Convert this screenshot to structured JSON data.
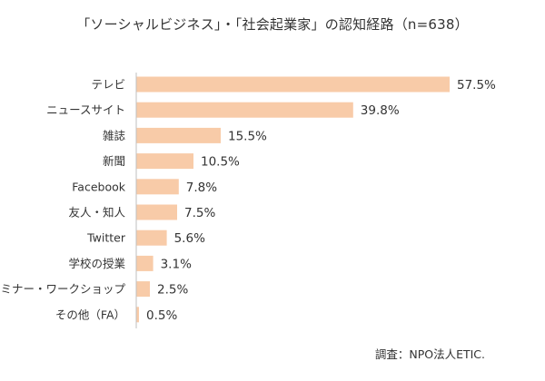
{
  "chart_data": {
    "type": "bar",
    "orientation": "horizontal",
    "title": "「ソーシャルビジネス」・「社会起業家」の認知経路（n=638）",
    "categories": [
      "テレビ",
      "ニュースサイト",
      "雑誌",
      "新聞",
      "Facebook",
      "友人・知人",
      "Twitter",
      "学校の授業",
      "セミナー・ワークショップ",
      "その他（FA）"
    ],
    "values": [
      57.5,
      39.8,
      15.5,
      10.5,
      7.8,
      7.5,
      5.6,
      3.1,
      2.5,
      0.5
    ],
    "value_labels": [
      "57.5%",
      "39.8%",
      "15.5%",
      "10.5%",
      "7.8%",
      "7.5%",
      "5.6%",
      "3.1%",
      "2.5%",
      "0.5%"
    ],
    "unit": "%",
    "xlim": [
      0,
      60
    ],
    "grid": false,
    "legend": "none",
    "bar_color": "#F8CBA8",
    "axis_color": "#BFBFBF",
    "source": "調査：NPO法人ETIC."
  }
}
